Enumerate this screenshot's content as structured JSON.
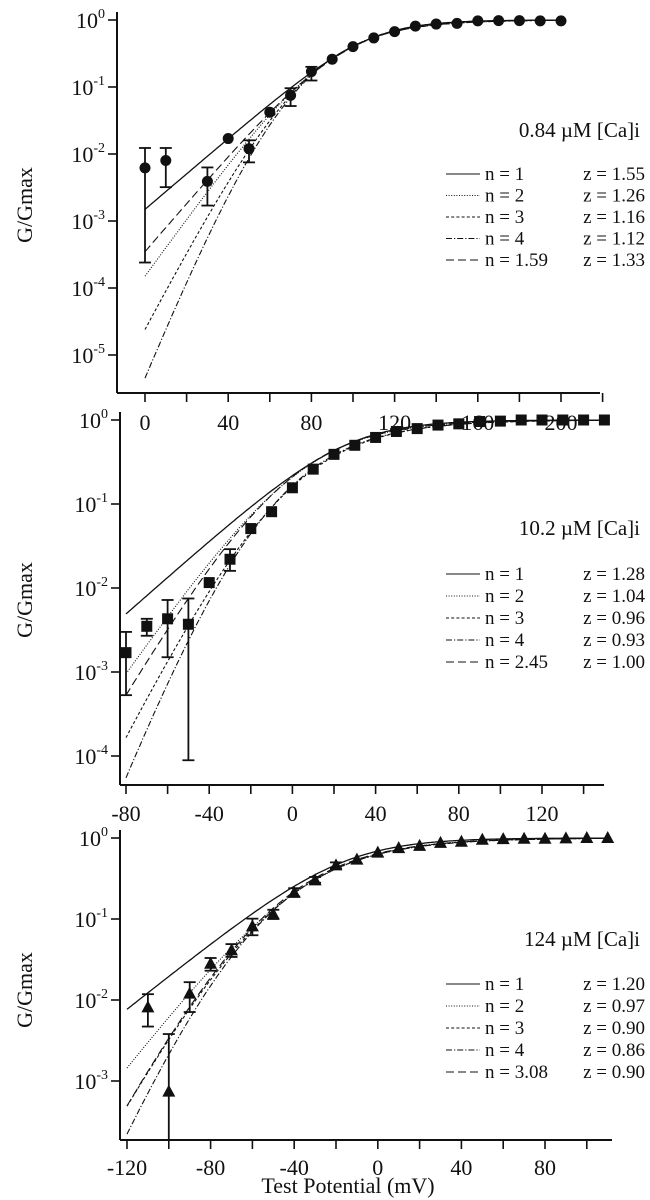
{
  "chart_data": [
    {
      "type": "scatter",
      "title": "0.84 µM [Ca]i",
      "ylabel": "G/Gmax",
      "xlabel": "",
      "yscale": "log",
      "ylim_log10": [
        -5.57,
        0.1
      ],
      "xlim": [
        -13,
        220
      ],
      "marker": "circle",
      "x_ticks": [
        0,
        20,
        40,
        60,
        80,
        100,
        120,
        140,
        160,
        180,
        200,
        220
      ],
      "x_tick_labels": [
        "0",
        "40",
        "80",
        "120",
        "160",
        "200"
      ],
      "x_tick_label_values": [
        0,
        40,
        80,
        120,
        160,
        200
      ],
      "y_tick_labels": [
        {
          "base": "10",
          "exp": "0"
        },
        {
          "base": "10",
          "exp": "-1"
        },
        {
          "base": "10",
          "exp": "-2"
        },
        {
          "base": "10",
          "exp": "-3"
        },
        {
          "base": "10",
          "exp": "-4"
        },
        {
          "base": "10",
          "exp": "-5"
        }
      ],
      "points": [
        {
          "x": 0,
          "y": 0.0062,
          "err": [
            0.00024,
            0.0123
          ]
        },
        {
          "x": 10,
          "y": 0.008,
          "err": [
            0.0032,
            0.0123
          ]
        },
        {
          "x": 30,
          "y": 0.0039,
          "err": [
            0.0017,
            0.0063
          ]
        },
        {
          "x": 40,
          "y": 0.017
        },
        {
          "x": 50,
          "y": 0.012,
          "err": [
            0.0075,
            0.016
          ]
        },
        {
          "x": 60,
          "y": 0.042
        },
        {
          "x": 70,
          "y": 0.075,
          "err": [
            0.052,
            0.096
          ]
        },
        {
          "x": 80,
          "y": 0.17,
          "err": [
            0.125,
            0.2
          ]
        },
        {
          "x": 90,
          "y": 0.26
        },
        {
          "x": 100,
          "y": 0.4
        },
        {
          "x": 110,
          "y": 0.54
        },
        {
          "x": 120,
          "y": 0.67
        },
        {
          "x": 130,
          "y": 0.81
        },
        {
          "x": 140,
          "y": 0.87
        },
        {
          "x": 150,
          "y": 0.89
        },
        {
          "x": 160,
          "y": 0.97
        },
        {
          "x": 170,
          "y": 0.98
        },
        {
          "x": 180,
          "y": 0.98
        },
        {
          "x": 190,
          "y": 0.97
        },
        {
          "x": 200,
          "y": 0.97
        }
      ],
      "fit_range": [
        0,
        200
      ],
      "fits": [
        {
          "n_label": "n = 1",
          "z_label": "z = 1.55",
          "n": 1,
          "z": 1.55,
          "v_half": 106.6,
          "style": "solid"
        },
        {
          "n_label": "n = 2",
          "z_label": "z = 1.26",
          "n": 2,
          "z": 1.26,
          "v_half": 88.5,
          "style": "dotted"
        },
        {
          "n_label": "n = 3",
          "z_label": "z = 1.16",
          "n": 3,
          "z": 1.16,
          "v_half": 77.0,
          "style": "short-dash"
        },
        {
          "n_label": "n = 4",
          "z_label": "z = 1.12",
          "n": 4,
          "z": 1.12,
          "v_half": 68.7,
          "style": "dash-dot"
        },
        {
          "n_label": "n = 1.59",
          "z_label": "z = 1.33",
          "n": 1.59,
          "z": 1.33,
          "v_half": 95.5,
          "style": "long-dash"
        }
      ]
    },
    {
      "type": "scatter",
      "title": "10.2 µM [Ca]i",
      "ylabel": "G/Gmax",
      "xlabel": "",
      "yscale": "log",
      "ylim_log10": [
        -4.35,
        0.1
      ],
      "xlim": [
        -83,
        150
      ],
      "marker": "square",
      "x_ticks": [
        -80,
        -60,
        -40,
        -20,
        0,
        20,
        40,
        60,
        80,
        100,
        120,
        140
      ],
      "x_tick_labels": [
        "-80",
        "-40",
        "0",
        "40",
        "80",
        "120"
      ],
      "x_tick_label_values": [
        -80,
        -40,
        0,
        40,
        80,
        120
      ],
      "y_tick_labels": [
        {
          "base": "10",
          "exp": "0"
        },
        {
          "base": "10",
          "exp": "-1"
        },
        {
          "base": "10",
          "exp": "-2"
        },
        {
          "base": "10",
          "exp": "-3"
        },
        {
          "base": "10",
          "exp": "-4"
        }
      ],
      "points": [
        {
          "x": -80,
          "y": 0.0017,
          "err": [
            0.00053,
            0.003
          ]
        },
        {
          "x": -70,
          "y": 0.0035,
          "err": [
            0.0027,
            0.0043
          ]
        },
        {
          "x": -60,
          "y": 0.0043,
          "err": [
            0.0015,
            0.0072
          ]
        },
        {
          "x": -50,
          "y": 0.0037,
          "err": [
            8.9e-05,
            0.0075
          ]
        },
        {
          "x": -40,
          "y": 0.0116
        },
        {
          "x": -30,
          "y": 0.022,
          "err": [
            0.016,
            0.029
          ]
        },
        {
          "x": -20,
          "y": 0.051
        },
        {
          "x": -10,
          "y": 0.081
        },
        {
          "x": 0,
          "y": 0.156
        },
        {
          "x": 10,
          "y": 0.26
        },
        {
          "x": 20,
          "y": 0.39
        },
        {
          "x": 30,
          "y": 0.5
        },
        {
          "x": 40,
          "y": 0.62
        },
        {
          "x": 50,
          "y": 0.73
        },
        {
          "x": 60,
          "y": 0.79
        },
        {
          "x": 70,
          "y": 0.87
        },
        {
          "x": 80,
          "y": 0.9
        },
        {
          "x": 90,
          "y": 0.96
        },
        {
          "x": 100,
          "y": 0.97
        },
        {
          "x": 110,
          "y": 1.0
        },
        {
          "x": 120,
          "y": 1.0
        },
        {
          "x": 130,
          "y": 1.0
        },
        {
          "x": 140,
          "y": 1.0
        },
        {
          "x": 150,
          "y": 1.0
        }
      ],
      "fit_range": [
        -80,
        150
      ],
      "fits": [
        {
          "n_label": "n = 1",
          "z_label": "z = 1.28",
          "n": 1,
          "z": 1.28,
          "v_half": 25.4,
          "style": "solid"
        },
        {
          "n_label": "n = 2",
          "z_label": "z = 1.04",
          "n": 2,
          "z": 1.04,
          "v_half": 4.2,
          "style": "dotted"
        },
        {
          "n_label": "n = 3",
          "z_label": "z = 0.96",
          "n": 3,
          "z": 0.96,
          "v_half": -4.7,
          "style": "short-dash"
        },
        {
          "n_label": "n = 4",
          "z_label": "z = 0.93",
          "n": 4,
          "z": 0.93,
          "v_half": -15.5,
          "style": "dash-dot"
        },
        {
          "n_label": "n = 2.45",
          "z_label": "z = 1.00",
          "n": 2.45,
          "z": 1.0,
          "v_half": -3,
          "style": "long-dash"
        }
      ]
    },
    {
      "type": "scatter",
      "title": "124 µM [Ca]i",
      "ylabel": "G/Gmax",
      "xlabel": "Test Potential (mV)",
      "yscale": "log",
      "ylim_log10": [
        -3.74,
        0.1
      ],
      "xlim": [
        -124,
        112
      ],
      "marker": "triangle",
      "x_ticks": [
        -120,
        -100,
        -80,
        -60,
        -40,
        -20,
        0,
        20,
        40,
        60,
        80,
        100
      ],
      "x_tick_labels": [
        "-120",
        "-80",
        "-40",
        "0",
        "40",
        "80"
      ],
      "x_tick_label_values": [
        -120,
        -80,
        -40,
        0,
        40,
        80
      ],
      "y_tick_labels": [
        {
          "base": "10",
          "exp": "0"
        },
        {
          "base": "10",
          "exp": "-1"
        },
        {
          "base": "10",
          "exp": "-2"
        },
        {
          "base": "10",
          "exp": "-3"
        }
      ],
      "points": [
        {
          "x": -110,
          "y": 0.0081,
          "err": [
            0.0047,
            0.0118
          ]
        },
        {
          "x": -100,
          "y": 0.00074,
          "err": [
            0.00018,
            0.0038
          ]
        },
        {
          "x": -90,
          "y": 0.012,
          "err": [
            0.0071,
            0.0166
          ]
        },
        {
          "x": -80,
          "y": 0.028,
          "err": [
            0.023,
            0.033
          ]
        },
        {
          "x": -70,
          "y": 0.041,
          "err": [
            0.034,
            0.049
          ]
        },
        {
          "x": -60,
          "y": 0.081,
          "err": [
            0.063,
            0.101
          ]
        },
        {
          "x": -50,
          "y": 0.114,
          "err": [
            0.1,
            0.13
          ]
        },
        {
          "x": -40,
          "y": 0.21,
          "err": [
            0.19,
            0.24
          ]
        },
        {
          "x": -30,
          "y": 0.3,
          "err": [
            0.28,
            0.33
          ]
        },
        {
          "x": -20,
          "y": 0.46,
          "err": [
            0.42,
            0.5
          ]
        },
        {
          "x": -10,
          "y": 0.54
        },
        {
          "x": 0,
          "y": 0.66
        },
        {
          "x": 10,
          "y": 0.75
        },
        {
          "x": 20,
          "y": 0.8
        },
        {
          "x": 30,
          "y": 0.87
        },
        {
          "x": 40,
          "y": 0.9
        },
        {
          "x": 50,
          "y": 0.95
        },
        {
          "x": 60,
          "y": 0.97
        },
        {
          "x": 70,
          "y": 0.98
        },
        {
          "x": 80,
          "y": 0.98
        },
        {
          "x": 90,
          "y": 0.99
        },
        {
          "x": 100,
          "y": 1.0
        },
        {
          "x": 110,
          "y": 1.0
        }
      ],
      "fit_range": [
        -120,
        110
      ],
      "fits": [
        {
          "n_label": "n = 1",
          "z_label": "z = 1.20",
          "n": 1,
          "z": 1.2,
          "v_half": -17.1,
          "style": "solid"
        },
        {
          "n_label": "n = 2",
          "z_label": "z = 0.97",
          "n": 2,
          "z": 0.97,
          "v_half": -35.4,
          "style": "dotted"
        },
        {
          "n_label": "n = 3",
          "z_label": "z = 0.90",
          "n": 3,
          "z": 0.9,
          "v_half": -50.6,
          "style": "short-dash"
        },
        {
          "n_label": "n = 4",
          "z_label": "z = 0.86",
          "n": 4,
          "z": 0.86,
          "v_half": -61.7,
          "style": "dash-dot"
        },
        {
          "n_label": "n = 3.08",
          "z_label": "z = 0.90",
          "n": 3.08,
          "z": 0.9,
          "v_half": -52.7,
          "style": "long-dash"
        }
      ]
    }
  ]
}
